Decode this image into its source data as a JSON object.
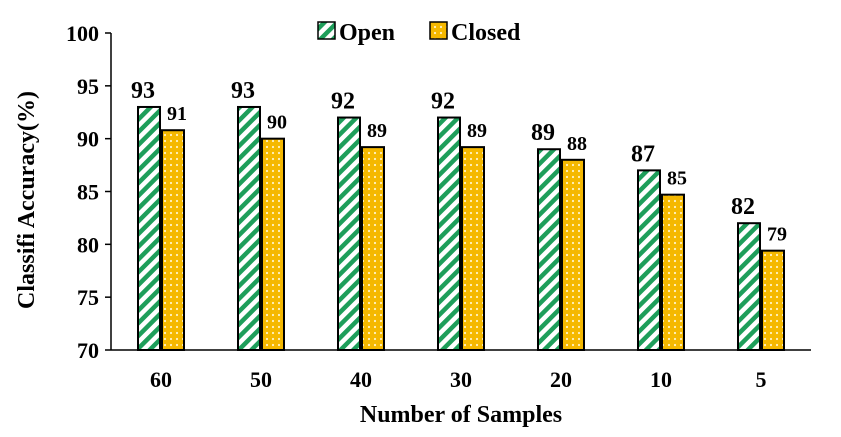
{
  "chart_data": {
    "type": "bar",
    "title": "",
    "xlabel": "Number of Samples",
    "ylabel": "Classifi Accuracy(%)",
    "categories": [
      "60",
      "50",
      "40",
      "30",
      "20",
      "10",
      "5"
    ],
    "ylim": [
      70,
      100
    ],
    "yticks": [
      70,
      75,
      80,
      85,
      90,
      95,
      100
    ],
    "grid": false,
    "legend_position": "top-center",
    "series": [
      {
        "name": "Open",
        "values": [
          93,
          93,
          92,
          92,
          89,
          87,
          82
        ],
        "labels": [
          "93",
          "93",
          "92",
          "92",
          "89",
          "87",
          "82"
        ],
        "color": "#1e9e5a",
        "pattern": "diagonal-stripes"
      },
      {
        "name": "Closed",
        "values": [
          90.8,
          90.0,
          89.2,
          89.2,
          88.0,
          84.7,
          79.4
        ],
        "labels": [
          "91",
          "90",
          "89",
          "89",
          "88",
          "85",
          "79"
        ],
        "color": "#f5b800",
        "pattern": "dots"
      }
    ]
  }
}
